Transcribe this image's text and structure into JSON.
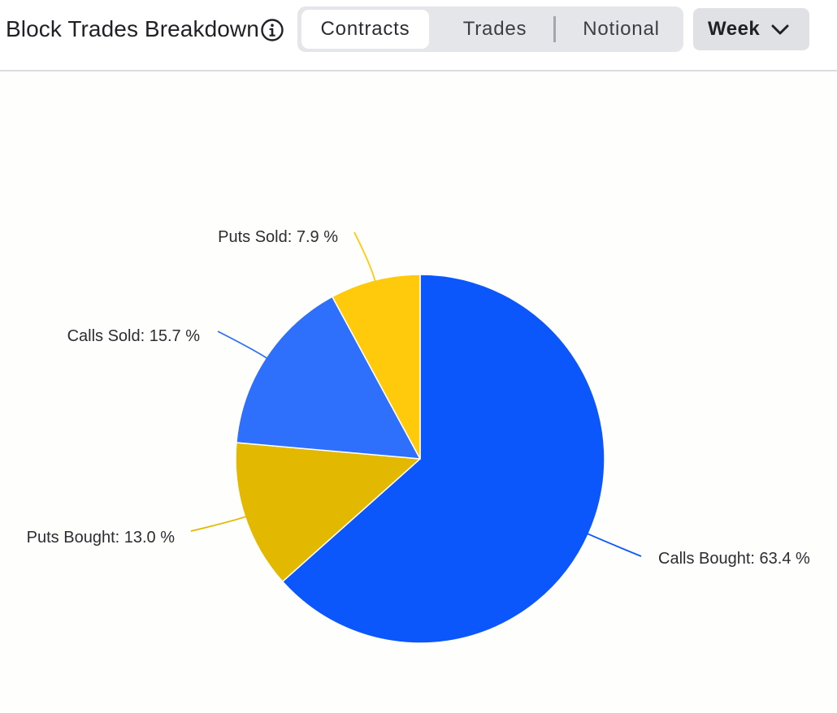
{
  "header": {
    "title": "Block Trades Breakdown",
    "tabs": [
      {
        "label": "Contracts",
        "active": true
      },
      {
        "label": "Trades",
        "active": false
      },
      {
        "label": "Notional",
        "active": false
      }
    ],
    "period": {
      "selected": "Week"
    }
  },
  "icons": {
    "info": "info-circle-icon",
    "period_dropdown": "chevron-down-icon"
  },
  "chart_data": {
    "type": "pie",
    "slices": [
      {
        "name": "Calls Bought",
        "value": 63.4,
        "label": "Calls Bought: 63.4 %",
        "color": "#0b57fb"
      },
      {
        "name": "Puts Bought",
        "value": 13.0,
        "label": "Puts Bought: 13.0 %",
        "color": "#e3b800"
      },
      {
        "name": "Calls Sold",
        "value": 15.7,
        "label": "Calls Sold: 15.7 %",
        "color": "#2e6ffc"
      },
      {
        "name": "Puts Sold",
        "value": 7.9,
        "label": "Puts Sold: 7.9 %",
        "color": "#ffca0b"
      }
    ],
    "start_angle": "12 o'clock",
    "direction": "clockwise",
    "legend": "none"
  }
}
